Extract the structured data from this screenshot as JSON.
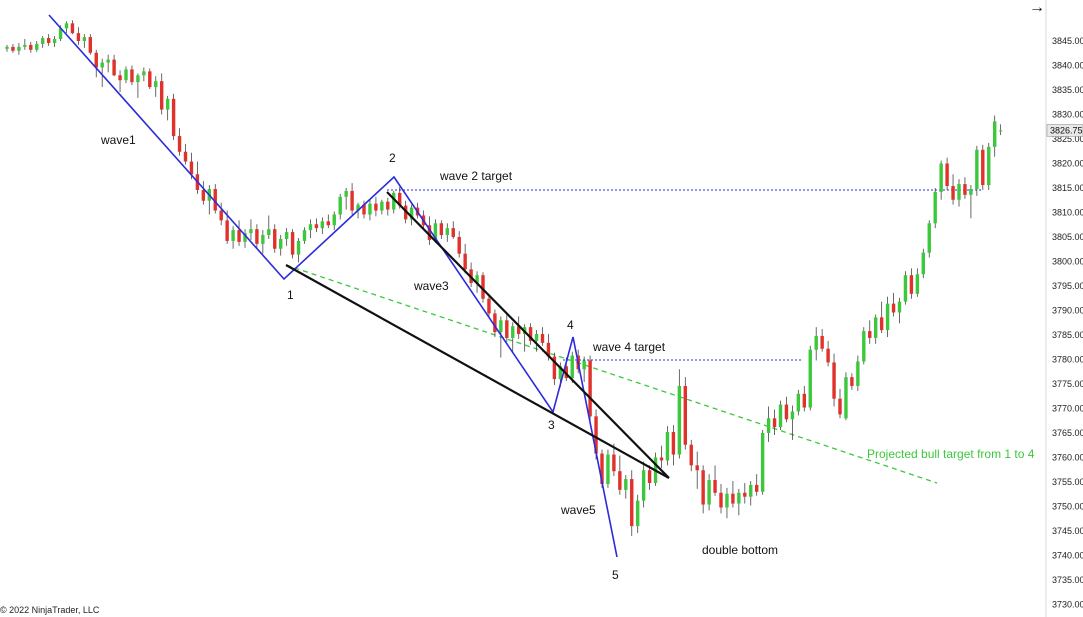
{
  "chart_data": {
    "type": "candlestick",
    "platform": "NinjaTrader",
    "y_axis": {
      "ticks": [
        "3845.00",
        "3840.00",
        "3835.00",
        "3830.00",
        "3825.00",
        "3820.00",
        "3815.00",
        "3810.00",
        "3805.00",
        "3800.00",
        "3795.00",
        "3790.00",
        "3785.00",
        "3780.00",
        "3775.00",
        "3770.00",
        "3765.00",
        "3760.00",
        "3755.00",
        "3750.00",
        "3745.00",
        "3740.00",
        "3735.00",
        "3730.00"
      ],
      "range": [
        3729.5,
        3849
      ],
      "current_price": "3826.75"
    },
    "colors": {
      "up": "#3cc83c",
      "down": "#e0312a",
      "wick": "#444444",
      "wave": "#2b2bdc",
      "wedge": "#111111",
      "target_green": "#3cc83c",
      "target_blue": "#2b2bdc"
    },
    "candles": [
      [
        3843.4,
        3844.2,
        3842.8,
        3843.8
      ],
      [
        3843.8,
        3844.4,
        3842.6,
        3843.0
      ],
      [
        3843.0,
        3844.6,
        3842.2,
        3843.8
      ],
      [
        3843.8,
        3845.4,
        3843.2,
        3844.2
      ],
      [
        3844.2,
        3844.8,
        3842.6,
        3843.2
      ],
      [
        3843.2,
        3845.0,
        3842.8,
        3844.4
      ],
      [
        3844.4,
        3846.0,
        3843.6,
        3845.6
      ],
      [
        3845.6,
        3846.4,
        3844.0,
        3844.6
      ],
      [
        3844.6,
        3846.0,
        3843.8,
        3845.4
      ],
      [
        3845.4,
        3848.2,
        3845.0,
        3847.6
      ],
      [
        3847.6,
        3849.0,
        3846.6,
        3848.6
      ],
      [
        3848.6,
        3849.2,
        3846.4,
        3846.6
      ],
      [
        3846.6,
        3847.8,
        3844.2,
        3845.0
      ],
      [
        3845.0,
        3846.4,
        3843.6,
        3845.8
      ],
      [
        3845.8,
        3846.4,
        3842.2,
        3842.6
      ],
      [
        3842.6,
        3843.2,
        3837.6,
        3839.6
      ],
      [
        3839.6,
        3841.4,
        3835.6,
        3840.6
      ],
      [
        3840.6,
        3842.2,
        3838.6,
        3841.2
      ],
      [
        3841.2,
        3842.2,
        3837.8,
        3838.0
      ],
      [
        3838.0,
        3839.0,
        3834.6,
        3837.0
      ],
      [
        3837.0,
        3839.8,
        3836.4,
        3839.2
      ],
      [
        3839.2,
        3840.0,
        3836.0,
        3836.6
      ],
      [
        3836.6,
        3838.4,
        3833.4,
        3838.0
      ],
      [
        3838.0,
        3839.6,
        3836.8,
        3838.8
      ],
      [
        3838.8,
        3839.4,
        3835.2,
        3835.6
      ],
      [
        3835.6,
        3837.8,
        3833.6,
        3836.8
      ],
      [
        3836.8,
        3838.4,
        3830.0,
        3831.0
      ],
      [
        3831.0,
        3833.8,
        3828.8,
        3833.2
      ],
      [
        3833.2,
        3834.2,
        3824.8,
        3825.6
      ],
      [
        3825.6,
        3827.2,
        3821.6,
        3822.4
      ],
      [
        3822.4,
        3824.0,
        3819.8,
        3820.4
      ],
      [
        3820.4,
        3822.2,
        3816.8,
        3817.8
      ],
      [
        3817.8,
        3820.4,
        3813.8,
        3814.6
      ],
      [
        3814.6,
        3816.4,
        3811.6,
        3812.4
      ],
      [
        3812.4,
        3815.6,
        3809.6,
        3814.8
      ],
      [
        3814.8,
        3815.8,
        3809.8,
        3810.4
      ],
      [
        3810.4,
        3812.0,
        3807.4,
        3808.4
      ],
      [
        3808.4,
        3810.4,
        3803.6,
        3804.2
      ],
      [
        3804.2,
        3807.2,
        3802.6,
        3806.4
      ],
      [
        3806.4,
        3808.4,
        3803.2,
        3804.0
      ],
      [
        3804.0,
        3806.6,
        3802.8,
        3805.8
      ],
      [
        3805.8,
        3808.6,
        3804.4,
        3806.6
      ],
      [
        3806.6,
        3807.6,
        3802.6,
        3803.6
      ],
      [
        3803.6,
        3806.4,
        3801.6,
        3805.4
      ],
      [
        3805.4,
        3809.4,
        3804.6,
        3806.6
      ],
      [
        3806.6,
        3807.6,
        3801.8,
        3802.6
      ],
      [
        3802.6,
        3805.4,
        3801.2,
        3804.6
      ],
      [
        3804.6,
        3806.8,
        3803.2,
        3806.0
      ],
      [
        3806.0,
        3806.6,
        3800.6,
        3801.4
      ],
      [
        3801.4,
        3804.8,
        3799.8,
        3804.2
      ],
      [
        3804.2,
        3807.0,
        3803.6,
        3806.4
      ],
      [
        3806.4,
        3808.6,
        3804.8,
        3807.6
      ],
      [
        3807.6,
        3808.8,
        3806.0,
        3806.8
      ],
      [
        3806.8,
        3809.0,
        3805.6,
        3808.2
      ],
      [
        3808.2,
        3809.6,
        3806.8,
        3807.4
      ],
      [
        3807.4,
        3810.2,
        3806.4,
        3809.6
      ],
      [
        3809.6,
        3813.8,
        3808.6,
        3813.2
      ],
      [
        3813.2,
        3815.0,
        3810.6,
        3814.4
      ],
      [
        3814.4,
        3816.0,
        3809.6,
        3810.4
      ],
      [
        3810.4,
        3812.0,
        3808.8,
        3811.6
      ],
      [
        3811.6,
        3812.4,
        3808.8,
        3809.6
      ],
      [
        3809.6,
        3812.6,
        3808.4,
        3811.8
      ],
      [
        3811.8,
        3813.2,
        3809.2,
        3810.4
      ],
      [
        3810.4,
        3812.6,
        3809.6,
        3812.2
      ],
      [
        3812.2,
        3813.0,
        3809.4,
        3810.6
      ],
      [
        3810.6,
        3814.4,
        3809.8,
        3814.0
      ],
      [
        3814.0,
        3815.2,
        3810.8,
        3811.4
      ],
      [
        3811.4,
        3812.4,
        3807.8,
        3808.6
      ],
      [
        3808.6,
        3811.6,
        3807.4,
        3811.0
      ],
      [
        3811.0,
        3812.0,
        3808.8,
        3809.4
      ],
      [
        3809.4,
        3810.4,
        3806.6,
        3807.4
      ],
      [
        3807.4,
        3809.2,
        3803.4,
        3804.4
      ],
      [
        3804.4,
        3808.6,
        3803.8,
        3807.8
      ],
      [
        3807.8,
        3808.4,
        3804.6,
        3805.4
      ],
      [
        3805.4,
        3807.8,
        3804.0,
        3806.8
      ],
      [
        3806.8,
        3808.2,
        3804.6,
        3805.0
      ],
      [
        3805.0,
        3806.2,
        3800.8,
        3801.6
      ],
      [
        3801.6,
        3803.6,
        3797.6,
        3798.4
      ],
      [
        3798.4,
        3799.8,
        3794.8,
        3795.6
      ],
      [
        3795.6,
        3798.0,
        3793.6,
        3797.2
      ],
      [
        3797.2,
        3797.8,
        3791.6,
        3792.4
      ],
      [
        3792.4,
        3793.4,
        3788.4,
        3789.4
      ],
      [
        3789.4,
        3790.2,
        3784.6,
        3785.6
      ],
      [
        3785.6,
        3788.8,
        3780.4,
        3788.0
      ],
      [
        3788.0,
        3789.2,
        3783.6,
        3784.4
      ],
      [
        3784.4,
        3787.6,
        3781.6,
        3786.8
      ],
      [
        3786.8,
        3788.8,
        3784.2,
        3785.2
      ],
      [
        3785.2,
        3787.2,
        3781.6,
        3786.6
      ],
      [
        3786.6,
        3787.4,
        3783.0,
        3783.8
      ],
      [
        3783.8,
        3786.0,
        3781.6,
        3785.2
      ],
      [
        3785.2,
        3786.6,
        3782.8,
        3783.4
      ],
      [
        3783.4,
        3785.2,
        3779.8,
        3780.6
      ],
      [
        3780.6,
        3781.4,
        3774.8,
        3776.0
      ],
      [
        3776.0,
        3779.4,
        3774.4,
        3778.6
      ],
      [
        3778.6,
        3780.4,
        3775.6,
        3776.2
      ],
      [
        3776.2,
        3781.6,
        3775.2,
        3780.8
      ],
      [
        3780.8,
        3782.0,
        3777.2,
        3778.0
      ],
      [
        3778.0,
        3780.6,
        3775.4,
        3779.8
      ],
      [
        3779.8,
        3780.8,
        3766.8,
        3768.4
      ],
      [
        3768.4,
        3769.8,
        3759.6,
        3760.8
      ],
      [
        3760.8,
        3761.6,
        3753.8,
        3754.6
      ],
      [
        3754.6,
        3761.6,
        3753.8,
        3760.6
      ],
      [
        3760.6,
        3762.8,
        3756.2,
        3757.2
      ],
      [
        3757.2,
        3760.4,
        3752.4,
        3753.4
      ],
      [
        3753.4,
        3756.4,
        3751.6,
        3755.6
      ],
      [
        3755.6,
        3757.4,
        3744.0,
        3746.0
      ],
      [
        3746.0,
        3752.4,
        3744.6,
        3751.2
      ],
      [
        3751.2,
        3759.2,
        3749.8,
        3757.4
      ],
      [
        3757.4,
        3758.4,
        3753.4,
        3754.8
      ],
      [
        3754.8,
        3761.0,
        3754.2,
        3760.0
      ],
      [
        3760.0,
        3762.4,
        3757.8,
        3759.4
      ],
      [
        3759.4,
        3766.4,
        3758.4,
        3765.2
      ],
      [
        3765.2,
        3766.6,
        3758.4,
        3760.6
      ],
      [
        3760.6,
        3778.0,
        3759.8,
        3774.6
      ],
      [
        3774.6,
        3776.4,
        3761.6,
        3762.6
      ],
      [
        3762.6,
        3763.6,
        3757.2,
        3758.4
      ],
      [
        3758.4,
        3761.2,
        3753.6,
        3757.4
      ],
      [
        3757.4,
        3758.4,
        3748.6,
        3750.4
      ],
      [
        3750.4,
        3756.6,
        3749.2,
        3755.4
      ],
      [
        3755.4,
        3758.4,
        3752.2,
        3752.8
      ],
      [
        3752.8,
        3754.6,
        3748.6,
        3749.8
      ],
      [
        3749.8,
        3753.8,
        3747.6,
        3752.6
      ],
      [
        3752.6,
        3755.2,
        3749.8,
        3750.6
      ],
      [
        3750.6,
        3753.6,
        3748.2,
        3752.8
      ],
      [
        3752.8,
        3754.8,
        3750.6,
        3752.0
      ],
      [
        3752.0,
        3755.2,
        3750.2,
        3754.4
      ],
      [
        3754.4,
        3756.6,
        3752.2,
        3753.0
      ],
      [
        3753.0,
        3765.6,
        3752.4,
        3765.0
      ],
      [
        3765.0,
        3770.4,
        3763.2,
        3768.0
      ],
      [
        3768.0,
        3769.8,
        3764.6,
        3766.2
      ],
      [
        3766.2,
        3771.6,
        3765.6,
        3770.8
      ],
      [
        3770.8,
        3772.4,
        3767.2,
        3767.8
      ],
      [
        3767.8,
        3770.6,
        3763.6,
        3769.4
      ],
      [
        3769.4,
        3773.8,
        3768.6,
        3773.0
      ],
      [
        3773.0,
        3774.6,
        3769.4,
        3770.2
      ],
      [
        3770.2,
        3782.8,
        3769.6,
        3782.0
      ],
      [
        3782.0,
        3786.6,
        3779.8,
        3784.8
      ],
      [
        3784.8,
        3786.2,
        3781.6,
        3782.2
      ],
      [
        3782.2,
        3783.8,
        3778.6,
        3779.4
      ],
      [
        3779.4,
        3781.2,
        3770.4,
        3772.0
      ],
      [
        3772.0,
        3774.0,
        3768.0,
        3768.8
      ],
      [
        3768.0,
        3777.4,
        3767.6,
        3776.4
      ],
      [
        3776.4,
        3777.2,
        3773.8,
        3774.6
      ],
      [
        3774.6,
        3780.8,
        3773.6,
        3779.6
      ],
      [
        3779.6,
        3786.6,
        3779.0,
        3785.8
      ],
      [
        3785.8,
        3788.0,
        3783.2,
        3784.4
      ],
      [
        3784.4,
        3789.2,
        3783.2,
        3788.6
      ],
      [
        3788.6,
        3791.8,
        3785.4,
        3786.0
      ],
      [
        3786.0,
        3792.8,
        3784.6,
        3791.4
      ],
      [
        3791.4,
        3793.6,
        3788.8,
        3789.6
      ],
      [
        3789.6,
        3792.6,
        3787.4,
        3791.8
      ],
      [
        3791.8,
        3798.0,
        3791.2,
        3797.2
      ],
      [
        3797.2,
        3798.6,
        3792.4,
        3793.4
      ],
      [
        3793.4,
        3798.6,
        3792.8,
        3797.4
      ],
      [
        3797.4,
        3802.6,
        3796.6,
        3801.8
      ],
      [
        3801.8,
        3808.4,
        3800.8,
        3807.8
      ],
      [
        3807.8,
        3815.0,
        3806.8,
        3814.2
      ],
      [
        3814.2,
        3820.6,
        3812.6,
        3820.0
      ],
      [
        3820.0,
        3821.2,
        3814.6,
        3815.4
      ],
      [
        3815.4,
        3817.8,
        3811.6,
        3812.6
      ],
      [
        3812.6,
        3816.8,
        3811.2,
        3815.8
      ],
      [
        3815.8,
        3817.2,
        3812.8,
        3813.6
      ],
      [
        3813.6,
        3815.6,
        3808.8,
        3814.8
      ],
      [
        3814.8,
        3823.6,
        3813.4,
        3822.8
      ],
      [
        3822.8,
        3823.8,
        3814.6,
        3815.6
      ],
      [
        3815.6,
        3824.2,
        3814.6,
        3823.4
      ],
      [
        3823.4,
        3829.8,
        3821.4,
        3828.6
      ],
      [
        3826.6,
        3828.0,
        3825.8,
        3826.75
      ]
    ],
    "annotations": [
      {
        "text": "wave1",
        "style": "annot"
      },
      {
        "text": "2",
        "style": "annot"
      },
      {
        "text": "wave 2 target",
        "style": "annot"
      },
      {
        "text": "1",
        "style": "annot"
      },
      {
        "text": "wave3",
        "style": "annot"
      },
      {
        "text": "4",
        "style": "annot"
      },
      {
        "text": "wave 4 target",
        "style": "annot"
      },
      {
        "text": "3",
        "style": "annot"
      },
      {
        "text": "wave5",
        "style": "annot"
      },
      {
        "text": "5",
        "style": "annot"
      },
      {
        "text": "double bottom",
        "style": "annot"
      },
      {
        "text": "Projected bull target from 1 to 4",
        "style": "annot-green"
      }
    ],
    "wave_line": [
      [
        49,
        15
      ],
      [
        284,
        279
      ],
      [
        394,
        177
      ],
      [
        553,
        412
      ],
      [
        573,
        337
      ],
      [
        617,
        557
      ]
    ],
    "wedge_lines": [
      [
        [
          286,
          265
        ],
        [
          669,
          478
        ]
      ],
      [
        [
          387,
          192
        ],
        [
          669,
          478
        ]
      ]
    ],
    "projected_line": [
      [
        286,
        265
      ],
      [
        937,
        483
      ]
    ],
    "wave2_target_line": [
      [
        387,
        190
      ],
      [
        982,
        190
      ]
    ],
    "wave4_target_line": [
      [
        563,
        360
      ],
      [
        803,
        360
      ]
    ]
  },
  "copyright": "© 2022 NinjaTrader, LLC",
  "toolbar": {
    "arrow_icon": "arrow-right-icon",
    "arrow_glyph": "→"
  }
}
